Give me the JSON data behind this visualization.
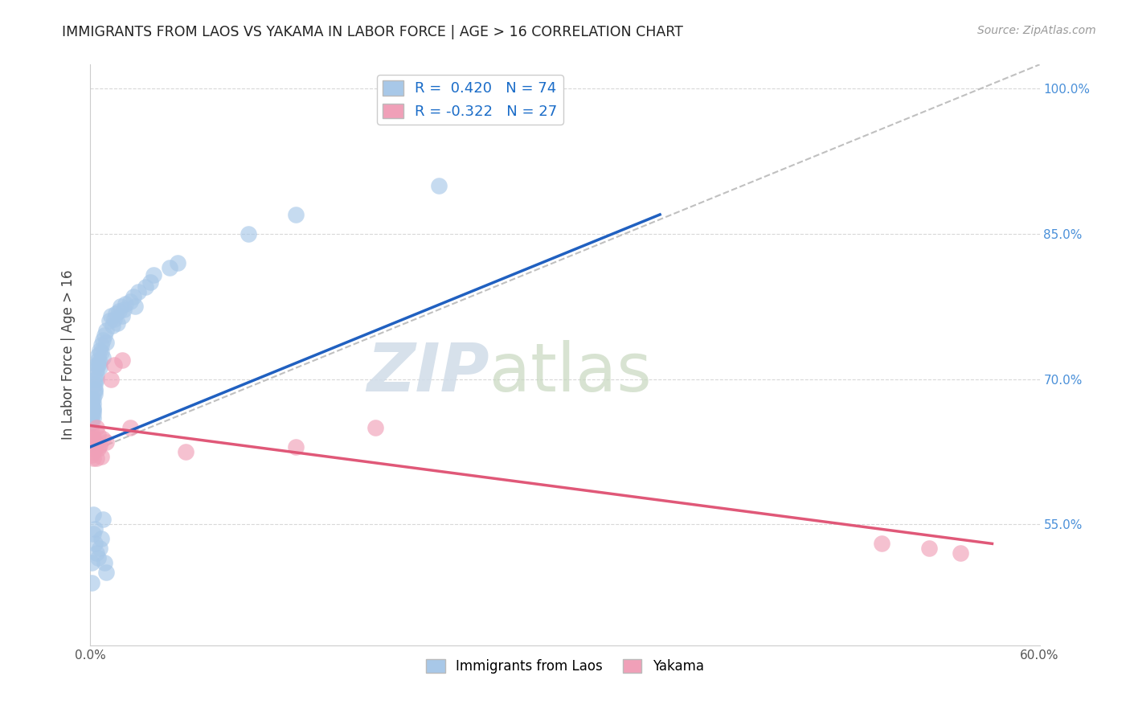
{
  "title": "IMMIGRANTS FROM LAOS VS YAKAMA IN LABOR FORCE | AGE > 16 CORRELATION CHART",
  "source": "Source: ZipAtlas.com",
  "ylabel": "In Labor Force | Age > 16",
  "x_min": 0.0,
  "x_max": 0.6,
  "y_min": 0.425,
  "y_max": 1.025,
  "x_ticks": [
    0.0,
    0.1,
    0.2,
    0.3,
    0.4,
    0.5,
    0.6
  ],
  "y_ticks": [
    0.55,
    0.7,
    0.85,
    1.0
  ],
  "y_tick_labels": [
    "55.0%",
    "70.0%",
    "85.0%",
    "100.0%"
  ],
  "legend_label1": "Immigrants from Laos",
  "legend_label2": "Yakama",
  "R1": 0.42,
  "N1": 74,
  "R2": -0.322,
  "N2": 27,
  "blue_color": "#A8C8E8",
  "pink_color": "#F0A0B8",
  "blue_line_color": "#2060C0",
  "pink_line_color": "#E05878",
  "gray_dash_color": "#C0C0C0",
  "background_color": "#FFFFFF",
  "grid_color": "#D8D8D8",
  "blue_scatter_x": [
    0.001,
    0.001,
    0.001,
    0.001,
    0.001,
    0.001,
    0.001,
    0.001,
    0.001,
    0.001,
    0.002,
    0.002,
    0.002,
    0.002,
    0.002,
    0.002,
    0.003,
    0.003,
    0.003,
    0.003,
    0.003,
    0.004,
    0.004,
    0.004,
    0.004,
    0.005,
    0.005,
    0.005,
    0.006,
    0.006,
    0.006,
    0.007,
    0.007,
    0.008,
    0.008,
    0.009,
    0.01,
    0.01,
    0.012,
    0.013,
    0.014,
    0.015,
    0.016,
    0.017,
    0.018,
    0.019,
    0.02,
    0.021,
    0.022,
    0.025,
    0.027,
    0.028,
    0.03,
    0.035,
    0.038,
    0.04,
    0.05,
    0.055,
    0.1,
    0.13,
    0.22,
    0.001,
    0.001,
    0.002,
    0.002,
    0.003,
    0.003,
    0.004,
    0.005,
    0.006,
    0.007,
    0.008,
    0.009,
    0.01
  ],
  "blue_scatter_y": [
    0.68,
    0.675,
    0.67,
    0.665,
    0.66,
    0.655,
    0.67,
    0.675,
    0.668,
    0.672,
    0.68,
    0.67,
    0.665,
    0.66,
    0.675,
    0.668,
    0.69,
    0.685,
    0.695,
    0.7,
    0.688,
    0.705,
    0.71,
    0.715,
    0.7,
    0.72,
    0.725,
    0.715,
    0.73,
    0.718,
    0.712,
    0.735,
    0.728,
    0.74,
    0.722,
    0.745,
    0.75,
    0.738,
    0.76,
    0.765,
    0.755,
    0.762,
    0.768,
    0.758,
    0.77,
    0.775,
    0.765,
    0.772,
    0.778,
    0.78,
    0.785,
    0.775,
    0.79,
    0.795,
    0.8,
    0.808,
    0.815,
    0.82,
    0.85,
    0.87,
    0.9,
    0.51,
    0.49,
    0.56,
    0.54,
    0.53,
    0.545,
    0.52,
    0.515,
    0.525,
    0.535,
    0.555,
    0.51,
    0.5
  ],
  "blue_line_x": [
    0.0,
    0.36
  ],
  "blue_line_y": [
    0.63,
    0.87
  ],
  "pink_scatter_x": [
    0.001,
    0.001,
    0.001,
    0.001,
    0.002,
    0.002,
    0.002,
    0.003,
    0.003,
    0.004,
    0.004,
    0.005,
    0.005,
    0.006,
    0.007,
    0.008,
    0.01,
    0.013,
    0.015,
    0.02,
    0.025,
    0.06,
    0.13,
    0.18,
    0.5,
    0.53,
    0.55
  ],
  "pink_scatter_y": [
    0.645,
    0.638,
    0.63,
    0.622,
    0.64,
    0.625,
    0.618,
    0.635,
    0.628,
    0.65,
    0.618,
    0.642,
    0.628,
    0.632,
    0.62,
    0.638,
    0.635,
    0.7,
    0.715,
    0.72,
    0.65,
    0.625,
    0.63,
    0.65,
    0.53,
    0.525,
    0.52
  ],
  "pink_line_x": [
    0.0,
    0.57
  ],
  "pink_line_y": [
    0.652,
    0.53
  ]
}
